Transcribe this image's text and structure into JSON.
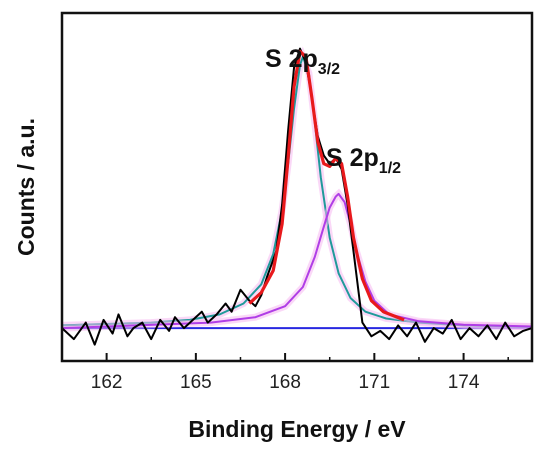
{
  "chart_data": {
    "type": "line",
    "title": "",
    "xlabel": "Binding Energy / eV",
    "ylabel": "Counts / a.u.",
    "xlim": [
      160.5,
      176.3
    ],
    "ylim": [
      -0.12,
      1.15
    ],
    "xticks": [
      162,
      165,
      168,
      171,
      174
    ],
    "yticks_shown": false,
    "grid": false,
    "legend": "none",
    "annotations": [
      {
        "main": "S 2p",
        "sub": "3/2",
        "x": 168.6
      },
      {
        "main": "S 2p",
        "sub": "1/2",
        "x": 169.9
      }
    ],
    "series": [
      {
        "role": "raw",
        "color": "#000000",
        "x": [
          160.5,
          160.9,
          161.3,
          161.6,
          161.9,
          162.2,
          162.4,
          162.7,
          162.9,
          163.2,
          163.5,
          163.8,
          164.1,
          164.3,
          164.6,
          164.9,
          165.2,
          165.4,
          165.7,
          166.0,
          166.2,
          166.5,
          166.8,
          167.0,
          167.2,
          167.4,
          167.7,
          167.9,
          168.1,
          168.3,
          168.5,
          168.7,
          168.9,
          169.1,
          169.3,
          169.5,
          169.7,
          169.9,
          170.1,
          170.3,
          170.6,
          170.9,
          171.2,
          171.5,
          171.8,
          172.1,
          172.4,
          172.7,
          173.0,
          173.3,
          173.6,
          173.9,
          174.2,
          174.5,
          174.8,
          175.1,
          175.4,
          175.7,
          176.0,
          176.3
        ],
        "y": [
          0.0,
          -0.04,
          0.02,
          -0.06,
          0.03,
          -0.02,
          0.05,
          -0.03,
          0.0,
          0.02,
          -0.04,
          0.03,
          -0.01,
          0.04,
          0.0,
          0.03,
          0.06,
          0.02,
          0.05,
          0.09,
          0.06,
          0.14,
          0.1,
          0.08,
          0.12,
          0.19,
          0.28,
          0.45,
          0.72,
          0.95,
          1.02,
          0.97,
          0.84,
          0.7,
          0.63,
          0.6,
          0.62,
          0.58,
          0.45,
          0.28,
          0.02,
          -0.03,
          -0.01,
          -0.04,
          0.01,
          -0.03,
          0.02,
          -0.05,
          0.0,
          -0.02,
          0.03,
          -0.04,
          0.0,
          -0.03,
          0.01,
          -0.04,
          0.02,
          -0.03,
          -0.01,
          0.0
        ]
      },
      {
        "role": "envelope",
        "color": "#e8191c",
        "x": [
          166.8,
          167.2,
          167.6,
          167.9,
          168.1,
          168.3,
          168.5,
          168.7,
          168.9,
          169.1,
          169.3,
          169.5,
          169.7,
          169.9,
          170.1,
          170.3,
          170.6,
          170.9,
          171.3,
          172.0
        ],
        "y": [
          0.09,
          0.13,
          0.21,
          0.38,
          0.62,
          0.88,
          1.01,
          0.99,
          0.84,
          0.68,
          0.6,
          0.59,
          0.62,
          0.6,
          0.48,
          0.33,
          0.18,
          0.1,
          0.06,
          0.03
        ]
      },
      {
        "role": "component",
        "name": "S 2p3/2",
        "color": "#1f9a9a",
        "center": 168.6,
        "x": [
          160.5,
          162.0,
          163.5,
          164.8,
          165.8,
          166.6,
          167.2,
          167.6,
          167.9,
          168.1,
          168.3,
          168.5,
          168.6,
          168.8,
          169.0,
          169.2,
          169.5,
          169.8,
          170.2,
          170.7,
          171.4,
          172.5,
          174.0,
          176.3
        ],
        "y": [
          0.01,
          0.015,
          0.02,
          0.03,
          0.05,
          0.09,
          0.16,
          0.27,
          0.43,
          0.6,
          0.8,
          0.96,
          0.99,
          0.93,
          0.75,
          0.55,
          0.33,
          0.2,
          0.11,
          0.06,
          0.035,
          0.02,
          0.01,
          0.005
        ]
      },
      {
        "role": "component",
        "name": "S 2p1/2",
        "color": "#b03ee6",
        "center": 169.8,
        "x": [
          160.5,
          163.0,
          165.5,
          167.0,
          168.0,
          168.6,
          169.0,
          169.3,
          169.5,
          169.7,
          169.8,
          170.0,
          170.2,
          170.4,
          170.7,
          171.0,
          171.5,
          172.5,
          174.0,
          176.3
        ],
        "y": [
          0.0,
          0.01,
          0.02,
          0.04,
          0.08,
          0.15,
          0.26,
          0.37,
          0.44,
          0.48,
          0.49,
          0.46,
          0.38,
          0.28,
          0.17,
          0.1,
          0.05,
          0.025,
          0.012,
          0.006
        ]
      },
      {
        "role": "background",
        "color": "#2828e0",
        "x": [
          160.5,
          176.3
        ],
        "y": [
          0.0,
          0.0
        ]
      }
    ]
  }
}
